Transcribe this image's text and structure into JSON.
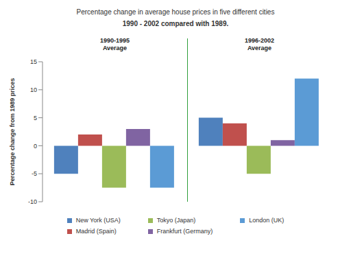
{
  "chart_data": {
    "type": "bar",
    "title": "Percentage change in average house prices in five different cities",
    "subtitle": "1990 - 2002 compared with 1989.",
    "y_label": "Percentage change from 1989 prices",
    "categories": [
      "1990-1995 Average",
      "1996-2002 Average"
    ],
    "series": [
      {
        "name": "New York (USA)",
        "color": "#4f81bd",
        "values": [
          -5,
          5
        ]
      },
      {
        "name": "Madrid (Spain)",
        "color": "#c0504d",
        "values": [
          2,
          4
        ]
      },
      {
        "name": "Tokyo (Japan)",
        "color": "#9bbb59",
        "values": [
          -7.5,
          -5
        ]
      },
      {
        "name": "Frankfurt (Germany)",
        "color": "#8064a2",
        "values": [
          3,
          1
        ]
      },
      {
        "name": "London (UK)",
        "color": "#5b9bd5",
        "values": [
          -7.5,
          12
        ]
      }
    ],
    "ylim": [
      -10,
      15
    ],
    "yticks": [
      -10,
      -5,
      0,
      5,
      10,
      15
    ],
    "grid": false,
    "legend": "bottom"
  }
}
